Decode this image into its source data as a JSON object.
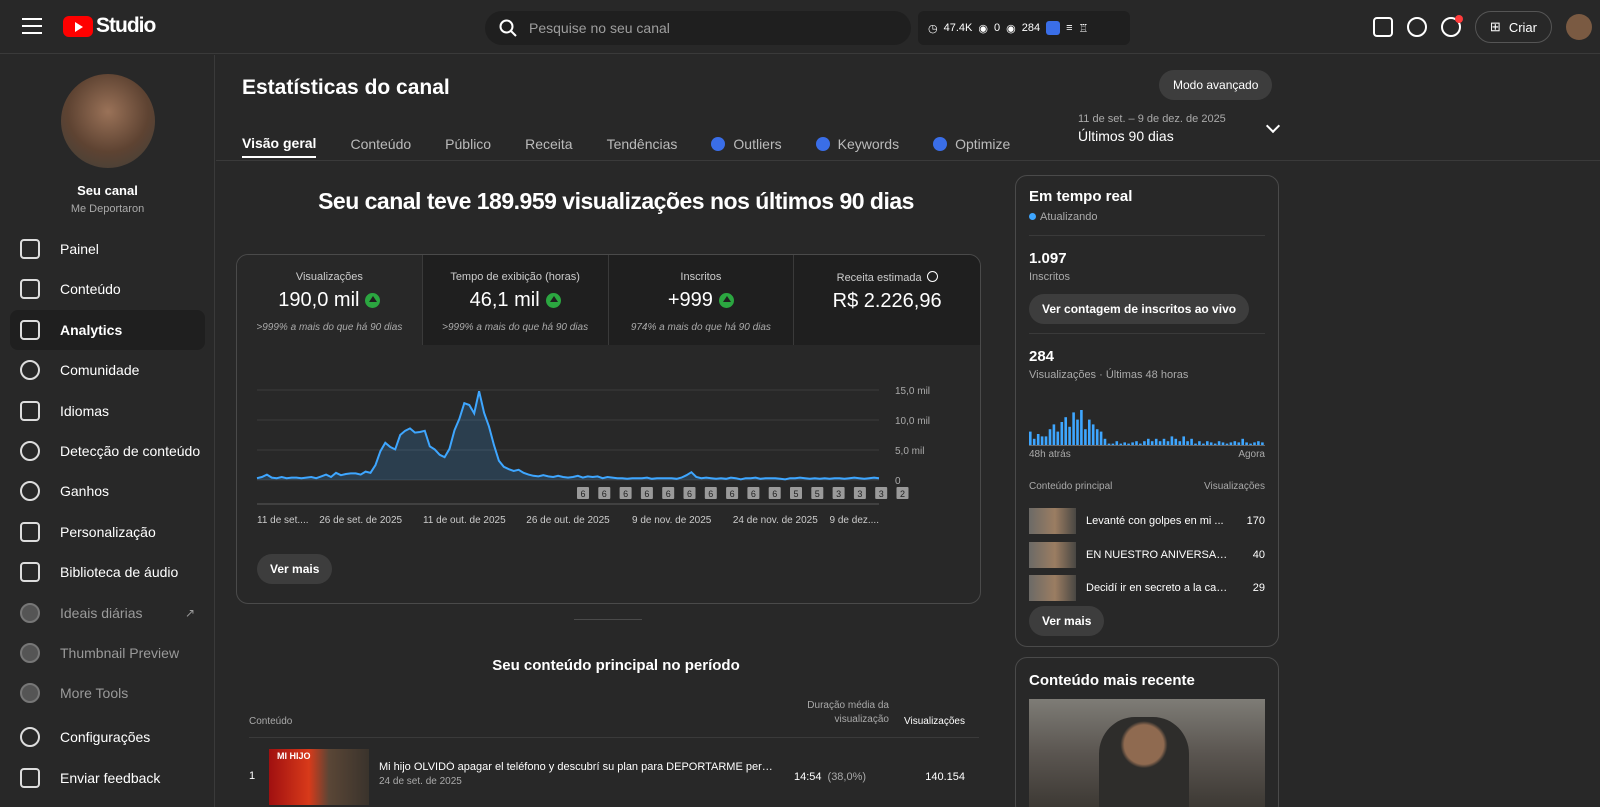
{
  "app": {
    "name": "Studio"
  },
  "search": {
    "placeholder": "Pesquise no seu canal"
  },
  "ext_stats": {
    "time": "47.4K",
    "views_a": "0",
    "views_b": "284"
  },
  "header": {
    "create_label": "Criar"
  },
  "channel": {
    "name": "Seu canal",
    "handle": "Me Deportaron"
  },
  "sidebar": {
    "items": [
      {
        "label": "Painel",
        "icon": "dashboard-icon"
      },
      {
        "label": "Conteúdo",
        "icon": "content-icon"
      },
      {
        "label": "Analytics",
        "icon": "analytics-icon",
        "active": true
      },
      {
        "label": "Comunidade",
        "icon": "community-icon"
      },
      {
        "label": "Idiomas",
        "icon": "subtitles-icon"
      },
      {
        "label": "Detecção de conteúdo",
        "icon": "copyright-icon"
      },
      {
        "label": "Ganhos",
        "icon": "earn-icon"
      },
      {
        "label": "Personalização",
        "icon": "customize-icon"
      },
      {
        "label": "Biblioteca de áudio",
        "icon": "audio-library-icon"
      },
      {
        "label": "Ideais diárias",
        "icon": "vidiq-icon"
      },
      {
        "label": "Thumbnail Preview",
        "icon": "vidiq-icon"
      },
      {
        "label": "More Tools",
        "icon": "vidiq-icon"
      },
      {
        "label": "Configurações",
        "icon": "settings-icon"
      },
      {
        "label": "Enviar feedback",
        "icon": "feedback-icon"
      }
    ]
  },
  "page": {
    "title": "Estatísticas do canal",
    "advanced_label": "Modo avançado",
    "tabs": [
      "Visão geral",
      "Conteúdo",
      "Público",
      "Receita",
      "Tendências",
      "Outliers",
      "Keywords",
      "Optimize"
    ],
    "date_range": "11 de set. – 9 de dez. de 2025",
    "date_preset": "Últimos 90 dias",
    "headline": "Seu canal teve 189.959 visualizações nos últimos 90 dias"
  },
  "metrics": [
    {
      "label": "Visualizações",
      "value": "190,0 mil",
      "compare": ">999% a mais do que há 90 dias"
    },
    {
      "label": "Tempo de exibição (horas)",
      "value": "46,1 mil",
      "compare": ">999% a mais do que há 90 dias"
    },
    {
      "label": "Inscritos",
      "value": "+999",
      "compare": "974% a mais do que há 90 dias"
    },
    {
      "label": "Receita estimada",
      "value": "R$ 2.226,96",
      "compare": ""
    }
  ],
  "chart_data": {
    "type": "area",
    "y_ticks": [
      "15,0 mil",
      "10,0 mil",
      "5,0 mil",
      "0"
    ],
    "ylim": [
      0,
      15000
    ],
    "x_ticks": [
      "11 de set....",
      "26 de set. de 2025",
      "11 de out. de 2025",
      "26 de out. de 2025",
      "9 de nov. de 2025",
      "24 de nov. de 2025",
      "9 de dez...."
    ],
    "values": [
      300,
      500,
      900,
      400,
      300,
      500,
      300,
      400,
      400,
      300,
      400,
      500,
      300,
      600,
      900,
      500,
      1200,
      800,
      1000,
      1100,
      1100,
      900,
      1400,
      1200,
      2500,
      4800,
      6200,
      5500,
      5100,
      7500,
      8200,
      8600,
      7900,
      8000,
      8200,
      5600,
      5100,
      4200,
      3800,
      5200,
      8300,
      10200,
      12800,
      12500,
      11100,
      14800,
      11200,
      8900,
      5800,
      3200,
      2200,
      1800,
      1500,
      1700,
      1200,
      900,
      700,
      600,
      800,
      600,
      500,
      700,
      500,
      400,
      500,
      700,
      400,
      600,
      500,
      600,
      300,
      500,
      400,
      300,
      300,
      200,
      300,
      300,
      300,
      400,
      200,
      300,
      300,
      300,
      300,
      200,
      400,
      800,
      1300,
      500,
      300,
      400,
      300,
      200,
      300,
      200,
      400,
      300,
      100,
      300,
      300,
      400,
      200,
      300,
      300,
      300,
      200,
      100,
      300,
      300,
      400,
      300,
      200,
      300,
      200,
      300,
      200,
      300,
      300,
      200,
      300,
      400,
      300,
      200,
      300,
      400,
      300
    ],
    "markers": [
      "6",
      "6",
      "6",
      "6",
      "6",
      "6",
      "6",
      "6",
      "6",
      "6",
      "5",
      "5",
      "3",
      "3",
      "3",
      "2"
    ]
  },
  "buttons": {
    "see_more": "Ver mais"
  },
  "top_content": {
    "title": "Seu conteúdo principal no período",
    "col_content": "Conteúdo",
    "col_avg": "Duração média da visualização",
    "col_views": "Visualizações",
    "rows": [
      {
        "rank": "1",
        "title": "Mi hijo OLVIDÓ apagar el teléfono y descubrí su plan para DEPORTARME pero qu...",
        "date": "24 de set. de 2025",
        "avg": "14:54",
        "pct": "(38,0%)",
        "views": "140.154",
        "thumb_text": "MI HIJO"
      }
    ]
  },
  "realtime": {
    "title": "Em tempo real",
    "status": "Atualizando",
    "subs_value": "1.097",
    "subs_label": "Inscritos",
    "live_button": "Ver contagem de inscritos ao vivo",
    "views_value": "284",
    "views_label": "Visualizações · Últimas 48 horas",
    "axis_start": "48h atrás",
    "axis_end": "Agora",
    "bars": [
      12,
      6,
      10,
      8,
      8,
      14,
      18,
      12,
      20,
      24,
      16,
      28,
      22,
      30,
      14,
      22,
      18,
      14,
      12,
      6,
      2,
      2,
      4,
      2,
      3,
      2,
      3,
      4,
      2,
      4,
      6,
      4,
      6,
      4,
      6,
      4,
      8,
      6,
      4,
      8,
      4,
      6,
      2,
      4,
      2,
      4,
      3,
      2,
      4,
      3,
      2,
      3,
      4,
      3,
      6,
      3,
      2,
      3,
      4,
      3
    ],
    "list_header_content": "Conteúdo principal",
    "list_header_views": "Visualizações",
    "items": [
      {
        "title": "Levanté con golpes en mi ...",
        "views": "170"
      },
      {
        "title": "EN NUESTRO ANIVERSARIO...",
        "views": "40"
      },
      {
        "title": "Decidí ir en secreto a la cas...",
        "views": "29"
      }
    ]
  },
  "recent": {
    "title": "Conteúdo mais recente"
  }
}
